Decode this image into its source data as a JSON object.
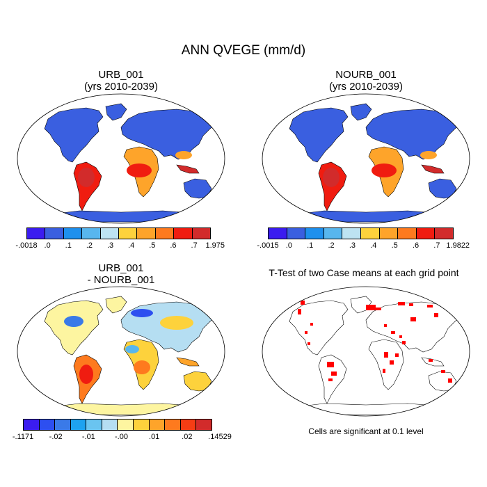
{
  "main_title": "ANN QVEGE (mm/d)",
  "panels": {
    "urb": {
      "title_line1": "URB_001",
      "title_line2": "(yrs 2010-2039)"
    },
    "nourb": {
      "title_line1": "NOURB_001",
      "title_line2": "(yrs 2010-2039)"
    },
    "diff": {
      "title_line1": "URB_001",
      "title_line2": "- NOURB_001"
    },
    "ttest": {
      "title": "T-Test of two Case means at each grid point",
      "footnote": "Cells are significant at 0.1 level"
    }
  },
  "colorbars": {
    "urb": {
      "colors": [
        "#3b1cf0",
        "#3a5fe0",
        "#1e90ee",
        "#58b6ee",
        "#bde3f2",
        "#fdd23c",
        "#fea42a",
        "#fe7a1e",
        "#f01c10",
        "#d22b2b"
      ],
      "labels": [
        "-.0018",
        ".0",
        ".1",
        ".2",
        ".3",
        ".4",
        ".5",
        ".6",
        ".7",
        "1.975"
      ]
    },
    "nourb": {
      "colors": [
        "#3b1cf0",
        "#3a5fe0",
        "#1e90ee",
        "#58b6ee",
        "#bde3f2",
        "#fdd23c",
        "#fea42a",
        "#fe7a1e",
        "#f01c10",
        "#d22b2b"
      ],
      "labels": [
        "-.0015",
        ".0",
        ".1",
        ".2",
        ".3",
        ".4",
        ".5",
        ".6",
        ".7",
        "1.9822"
      ]
    },
    "diff": {
      "colors": [
        "#3b1cf0",
        "#2d4ff0",
        "#3a7ae8",
        "#1ea2f0",
        "#6ac4f0",
        "#b5def2",
        "#fdf5a0",
        "#fdd23c",
        "#fea42a",
        "#fe7a1e",
        "#f53d14",
        "#d22b2b"
      ],
      "labels": [
        "-.1171",
        "-.02",
        "-.01",
        "-.00",
        ".01",
        ".02",
        ".14529"
      ]
    }
  }
}
